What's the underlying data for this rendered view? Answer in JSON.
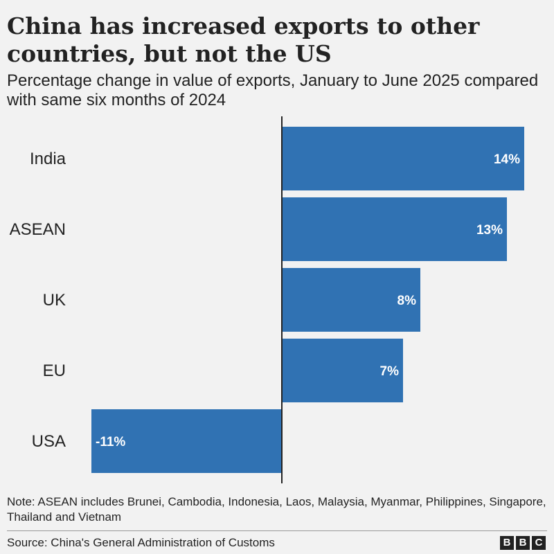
{
  "chart_data": {
    "type": "bar",
    "orientation": "horizontal",
    "title": "China has increased exports to other countries, but not the US",
    "subtitle": "Percentage change in value of exports, January to June 2025 compared with same six months of 2024",
    "categories": [
      "India",
      "ASEAN",
      "UK",
      "EU",
      "USA"
    ],
    "values": [
      14,
      13,
      8,
      7,
      -11
    ],
    "labels": [
      "14%",
      "13%",
      "8%",
      "7%",
      "-11%"
    ],
    "xlim": [
      -11,
      14
    ],
    "xlabel": "",
    "ylabel": "",
    "grid": false,
    "bar_color": "#3072b3"
  },
  "footer": {
    "note": "Note: ASEAN includes Brunei, Cambodia, Indonesia, Laos, Malaysia, Myanmar, Philippines, Singapore, Thailand and Vietnam",
    "source": "Source: China's General Administration of Customs",
    "logo": [
      "B",
      "B",
      "C"
    ]
  }
}
